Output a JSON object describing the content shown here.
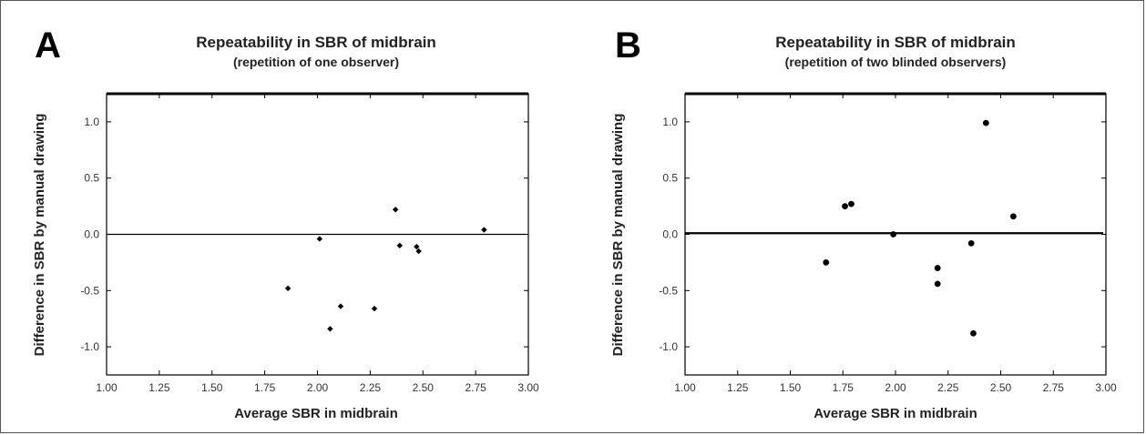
{
  "chart_data": [
    {
      "type": "scatter",
      "panel_label": "A",
      "title": "Repeatability in SBR of midbrain",
      "subtitle": "(repetition of one observer)",
      "xlabel": "Average SBR in midbrain",
      "ylabel": "Difference in SBR by manual drawing",
      "xlim": [
        1.0,
        3.0
      ],
      "ylim": [
        -1.25,
        1.25
      ],
      "xticks": [
        "1.00",
        "1.25",
        "1.50",
        "1.75",
        "2.00",
        "2.25",
        "2.50",
        "2.75",
        "3.00"
      ],
      "yticks": [
        "1.0",
        "0.5",
        "0.0",
        "-0.5",
        "-1.0"
      ],
      "reference_line_y": 0.0,
      "marker": "diamond",
      "points": [
        {
          "x": 1.86,
          "y": -0.48
        },
        {
          "x": 2.01,
          "y": -0.04
        },
        {
          "x": 2.06,
          "y": -0.84
        },
        {
          "x": 2.11,
          "y": -0.64
        },
        {
          "x": 2.27,
          "y": -0.66
        },
        {
          "x": 2.37,
          "y": 0.22
        },
        {
          "x": 2.39,
          "y": -0.1
        },
        {
          "x": 2.47,
          "y": -0.11
        },
        {
          "x": 2.48,
          "y": -0.15
        },
        {
          "x": 2.79,
          "y": 0.04
        }
      ]
    },
    {
      "type": "scatter",
      "panel_label": "B",
      "title": "Repeatability in SBR of midbrain",
      "subtitle": "(repetition of two blinded observers)",
      "xlabel": "Average SBR in midbrain",
      "ylabel": "Difference in SBR by manual drawing",
      "xlim": [
        1.0,
        3.0
      ],
      "ylim": [
        -1.25,
        1.25
      ],
      "xticks": [
        "1.00",
        "1.25",
        "1.50",
        "1.75",
        "2.00",
        "2.25",
        "2.50",
        "2.75",
        "3.00"
      ],
      "yticks": [
        "1.0",
        "0.5",
        "0.0",
        "-0.5",
        "-1.0"
      ],
      "reference_line_y": 0.01,
      "marker": "circle",
      "points": [
        {
          "x": 1.67,
          "y": -0.25
        },
        {
          "x": 1.76,
          "y": 0.25
        },
        {
          "x": 1.79,
          "y": 0.27
        },
        {
          "x": 1.99,
          "y": 0.0
        },
        {
          "x": 2.2,
          "y": -0.3
        },
        {
          "x": 2.2,
          "y": -0.44
        },
        {
          "x": 2.36,
          "y": -0.08
        },
        {
          "x": 2.37,
          "y": -0.88
        },
        {
          "x": 2.43,
          "y": 0.99
        },
        {
          "x": 2.56,
          "y": 0.16
        }
      ]
    }
  ]
}
